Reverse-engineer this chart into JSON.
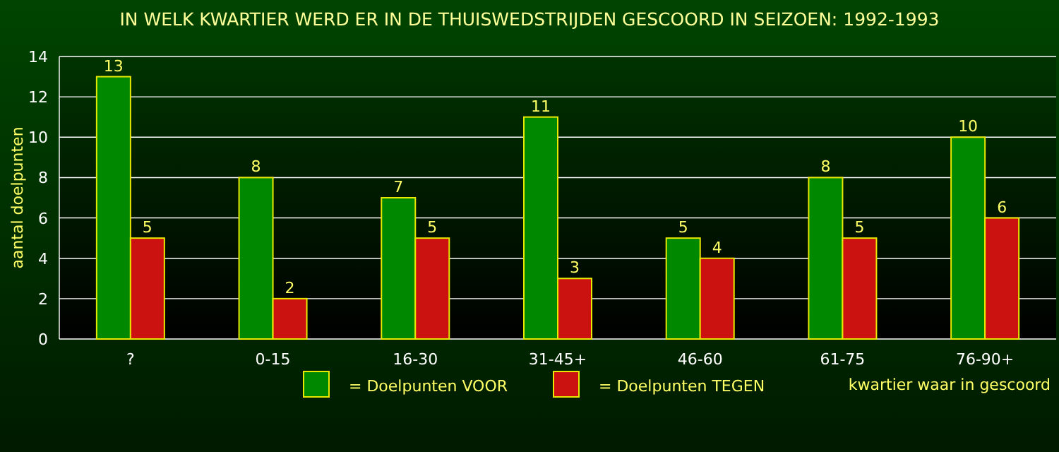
{
  "chart_data": {
    "type": "bar",
    "title": "IN WELK KWARTIER WERD ER IN DE THUISWEDSTRIJDEN GESCOORD IN SEIZOEN: 1992-1993",
    "xlabel": "kwartier waar in gescoord",
    "ylabel": "aantal doelpunten",
    "categories": [
      "?",
      "0-15",
      "16-30",
      "31-45+",
      "46-60",
      "61-75",
      "76-90+"
    ],
    "series": [
      {
        "name": "= Doelpunten VOOR",
        "color": "#008800",
        "values": [
          13,
          8,
          7,
          11,
          5,
          8,
          10
        ]
      },
      {
        "name": "= Doelpunten TEGEN",
        "color": "#cc1111",
        "values": [
          5,
          2,
          5,
          3,
          4,
          5,
          6
        ]
      }
    ],
    "ylim": [
      0,
      14
    ],
    "yticks": [
      0,
      2,
      4,
      6,
      8,
      10,
      12,
      14
    ],
    "grid": "y",
    "data_labels": true,
    "legend": "bottom"
  }
}
